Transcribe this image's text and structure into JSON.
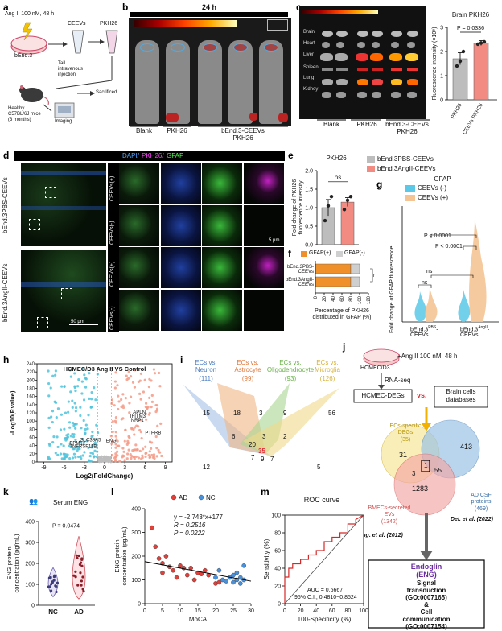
{
  "panels": {
    "a": {
      "label": "a",
      "treatment": "Ang II 100 nM, 48 h",
      "cell": "bEnd.3",
      "ceevs": "CEEVs",
      "pkh": "PKH26",
      "tail": "Tail\nintravenous\ninjection",
      "mice": "Healthy\nC57BL/6J mice\n(3 months)",
      "imaging": "Imaging",
      "sacrificed": "Sacrificed"
    },
    "b": {
      "label": "b",
      "time": "24 h",
      "groups": [
        "Blank",
        "PKH26",
        "bEnd.3-CEEVs\nPKH26"
      ]
    },
    "c": {
      "label": "c",
      "organs": [
        "Brain",
        "Heart",
        "Liver",
        "Spleen",
        "Lung",
        "Kidney"
      ],
      "groups": [
        "Blank",
        "PKH26",
        "bEnd.3-CEEVs\nPKH26"
      ],
      "chart_title": "Brain PKH26",
      "pvalue": "P = 0.0336"
    },
    "d": {
      "label": "d",
      "legend": [
        "DAPI/",
        "PKH26/",
        "GFAP"
      ],
      "row_groups": [
        "bEnd.3PBS-CEEVs",
        "bEnd.3AngII-CEEVs"
      ],
      "sub_rows": [
        "CEEVs(+)",
        "CEEVs(-)",
        "CEEVs(+)",
        "CEEVs(-)"
      ],
      "scale_small": "5 μm",
      "scale_large": "50 μm"
    },
    "e": {
      "label": "e",
      "title": "PKH26",
      "ns": "ns",
      "legend": [
        "bEnd.3PBS-CEEVs",
        "bEnd.3AngII-CEEVs"
      ]
    },
    "f": {
      "label": "f",
      "legend": [
        "GFAP(+)",
        "GFAP(-)"
      ],
      "rows": [
        "bEnd.3PBS-CEEVs",
        "bEnd.3AngII-CEEVs"
      ],
      "ns": "ns"
    },
    "g": {
      "label": "g",
      "title": "GFAP",
      "legend": [
        "CEEVs (-)",
        "CEEVs (+)"
      ],
      "p1": "P < 0.0001",
      "p2": "P < 0.0001",
      "ns": "ns"
    },
    "h": {
      "label": "h",
      "title": "HCMEC/D3 Ang II VS Control",
      "genes_up": [
        "APLN",
        "IFITM3",
        "NRP1",
        "PTPRB"
      ],
      "genes_down": [
        "SLC38A5",
        "PPM1J",
        "TNFRSF11B"
      ],
      "gene_mid": "ENG"
    },
    "i": {
      "label": "i",
      "sets": [
        {
          "name": "ECs vs.\nNeuron",
          "count": "(111)",
          "color": "#4f7fc1"
        },
        {
          "name": "ECs vs.\nAstrocyte",
          "count": "(99)",
          "color": "#e0783a"
        },
        {
          "name": "ECs vs.\nOligodendrocyte",
          "count": "(93)",
          "color": "#68b348"
        },
        {
          "name": "ECs vs.\nMicroglia",
          "count": "(126)",
          "color": "#d8b23a"
        }
      ],
      "numbers": [
        "15",
        "18",
        "3",
        "9",
        "56",
        "6",
        "3",
        "2",
        "20",
        "35",
        "12",
        "7",
        "9",
        "7",
        "5"
      ],
      "highlight": "35"
    },
    "j": {
      "label": "j",
      "cell": "HCMEC/D3",
      "treatment": "+Ang II 100 nM, 48 h",
      "rnaseq": "RNA-seq",
      "degs": "HCMEC-DEGs",
      "vs": "vs.",
      "databases": "Brain cells\ndatabases",
      "ecs_title": "ECs-specific\nDEGs",
      "ecs_count": "(35)",
      "bmecs_title": "BMECs-secreted\nEVs",
      "bmecs_count": "(1342)",
      "csf_title": "AD CSF\nproteins",
      "csf_count": "(469)",
      "n31": "31",
      "n413": "413",
      "n3": "3",
      "n1": "1",
      "n55": "55",
      "n1283": "1283",
      "ref1": "de Jong. et al. (2012)",
      "ref2": "Del. et al. (2022)",
      "result_title": "Endoglin\n(ENG)",
      "result_body": "Signal\ntransduction\n(GO:0007165)\n&\nCell\ncommunication\n(GO:0007154)"
    },
    "k": {
      "label": "k",
      "title": "Serum ENG",
      "pvalue": "P = 0.0474"
    },
    "l": {
      "label": "l",
      "eq1": "y = -2.743*x+177",
      "eq2": "R = 0.2516",
      "eq3": "P = 0.0222"
    },
    "m": {
      "label": "m",
      "title": "ROC curve",
      "auc": "AUC = 0.6667",
      "ci": "95% C.I., 0.4810~0.8524"
    }
  },
  "chart_data": [
    {
      "id": "c-bar",
      "type": "bar",
      "title": "Brain PKH26",
      "ylabel": "Fluorescence intensity (×10⁸)",
      "categories": [
        "PKH26",
        "bEnd.3-CEEVs\nPKH26"
      ],
      "values": [
        1.7,
        2.35
      ],
      "errors": [
        0.25,
        0.1
      ],
      "points": [
        [
          1.4,
          1.6,
          2.0
        ],
        [
          2.3,
          2.35,
          2.4
        ]
      ],
      "colors": [
        "#bdbdbd",
        "#f28b82"
      ],
      "ylim": [
        0,
        3
      ],
      "yticks": [
        0,
        1,
        2,
        3
      ]
    },
    {
      "id": "e-bar",
      "type": "bar",
      "title": "PKH26",
      "ylabel": "Fold change of PKH26\nfluorescence intensity",
      "categories": [
        "bEnd.3PBS-CEEVs",
        "bEnd.3AngII-CEEVs"
      ],
      "values": [
        1.0,
        1.15
      ],
      "errors": [
        0.22,
        0.12
      ],
      "points": [
        [
          0.65,
          1.05,
          1.3
        ],
        [
          0.95,
          1.2,
          1.3
        ]
      ],
      "colors": [
        "#bdbdbd",
        "#f28b82"
      ],
      "ylim": [
        0,
        2.0
      ],
      "yticks": [
        0.0,
        0.5,
        1.0,
        1.5,
        2.0
      ]
    },
    {
      "id": "f-stacked",
      "type": "bar",
      "orientation": "horizontal",
      "xlabel": "Percentage of PKH26\ndistributed in GFAP (%)",
      "categories": [
        "bEnd.3PBS-CEEVs",
        "bEnd.3AngII-CEEVs"
      ],
      "series": [
        {
          "name": "GFAP(+)",
          "values": [
            80,
            80
          ],
          "color": "#f0902a"
        },
        {
          "name": "GFAP(-)",
          "values": [
            20,
            20
          ],
          "color": "#cfcfcf"
        }
      ],
      "xlim": [
        0,
        120
      ],
      "xticks": [
        0,
        20,
        40,
        60,
        80,
        100,
        120
      ]
    },
    {
      "id": "h-volcano",
      "type": "scatter",
      "title": "HCMEC/D3 Ang II VS Control",
      "xlabel": "Log2(FoldChange)",
      "ylabel": "-Log10(P.value)",
      "xlim": [
        -10,
        10
      ],
      "ylim": [
        0,
        240
      ],
      "xticks": [
        -9,
        -6,
        -3,
        0,
        3,
        6,
        9
      ],
      "yticks": [
        0,
        20,
        40,
        60,
        80,
        100,
        120,
        140,
        160,
        180,
        200,
        220,
        240
      ]
    },
    {
      "id": "k-violin",
      "type": "scatter",
      "title": "Serum ENG",
      "ylabel": "ENG protein\nconcentration (pg/mL)",
      "categories": [
        "NC",
        "AD"
      ],
      "ylim": [
        0,
        400
      ],
      "yticks": [
        0,
        100,
        200,
        300,
        400
      ]
    },
    {
      "id": "l-scatter",
      "type": "scatter",
      "xlabel": "MoCA",
      "ylabel": "ENG protein\nconcentration (pg/mL)",
      "xlim": [
        0,
        30
      ],
      "ylim": [
        0,
        400
      ],
      "xticks": [
        0,
        5,
        10,
        15,
        20,
        25,
        30
      ],
      "yticks": [
        0,
        100,
        200,
        300,
        400
      ],
      "series": [
        {
          "name": "AD",
          "color": "#e0403a",
          "points": [
            [
              2,
              320
            ],
            [
              3,
              240
            ],
            [
              4,
              190
            ],
            [
              5,
              170
            ],
            [
              5,
              130
            ],
            [
              6,
              200
            ],
            [
              7,
              155
            ],
            [
              8,
              140
            ],
            [
              9,
              110
            ],
            [
              10,
              160
            ],
            [
              11,
              150
            ],
            [
              12,
              120
            ],
            [
              13,
              150
            ],
            [
              14,
              100
            ],
            [
              15,
              130
            ],
            [
              16,
              125
            ],
            [
              17,
              140
            ],
            [
              18,
              120
            ],
            [
              20,
              85
            ],
            [
              21,
              90
            ]
          ]
        },
        {
          "name": "NC",
          "color": "#4a90d9",
          "points": [
            [
              20,
              110
            ],
            [
              21,
              140
            ],
            [
              22,
              100
            ],
            [
              23,
              95
            ],
            [
              24,
              110
            ],
            [
              25,
              120
            ],
            [
              25,
              90
            ],
            [
              26,
              100
            ],
            [
              26,
              130
            ],
            [
              27,
              110
            ],
            [
              27,
              85
            ],
            [
              28,
              160
            ],
            [
              28,
              100
            ]
          ]
        }
      ],
      "fit": {
        "slope": -2.743,
        "intercept": 177
      }
    },
    {
      "id": "m-roc",
      "type": "line",
      "title": "ROC curve",
      "xlabel": "100-Specificity (%)",
      "ylabel": "Sensitivity (%)",
      "xlim": [
        0,
        100
      ],
      "ylim": [
        0,
        100
      ],
      "xticks": [
        0,
        20,
        40,
        60,
        80,
        100
      ],
      "yticks": [
        0,
        20,
        40,
        60,
        80,
        100
      ],
      "x": [
        0,
        0,
        5,
        5,
        10,
        10,
        20,
        20,
        30,
        30,
        40,
        40,
        50,
        50,
        60,
        60,
        70,
        70,
        80,
        80,
        90,
        90,
        100
      ],
      "y": [
        0,
        30,
        30,
        40,
        40,
        45,
        45,
        50,
        50,
        55,
        55,
        60,
        60,
        70,
        70,
        75,
        75,
        80,
        80,
        90,
        90,
        95,
        100
      ]
    }
  ]
}
